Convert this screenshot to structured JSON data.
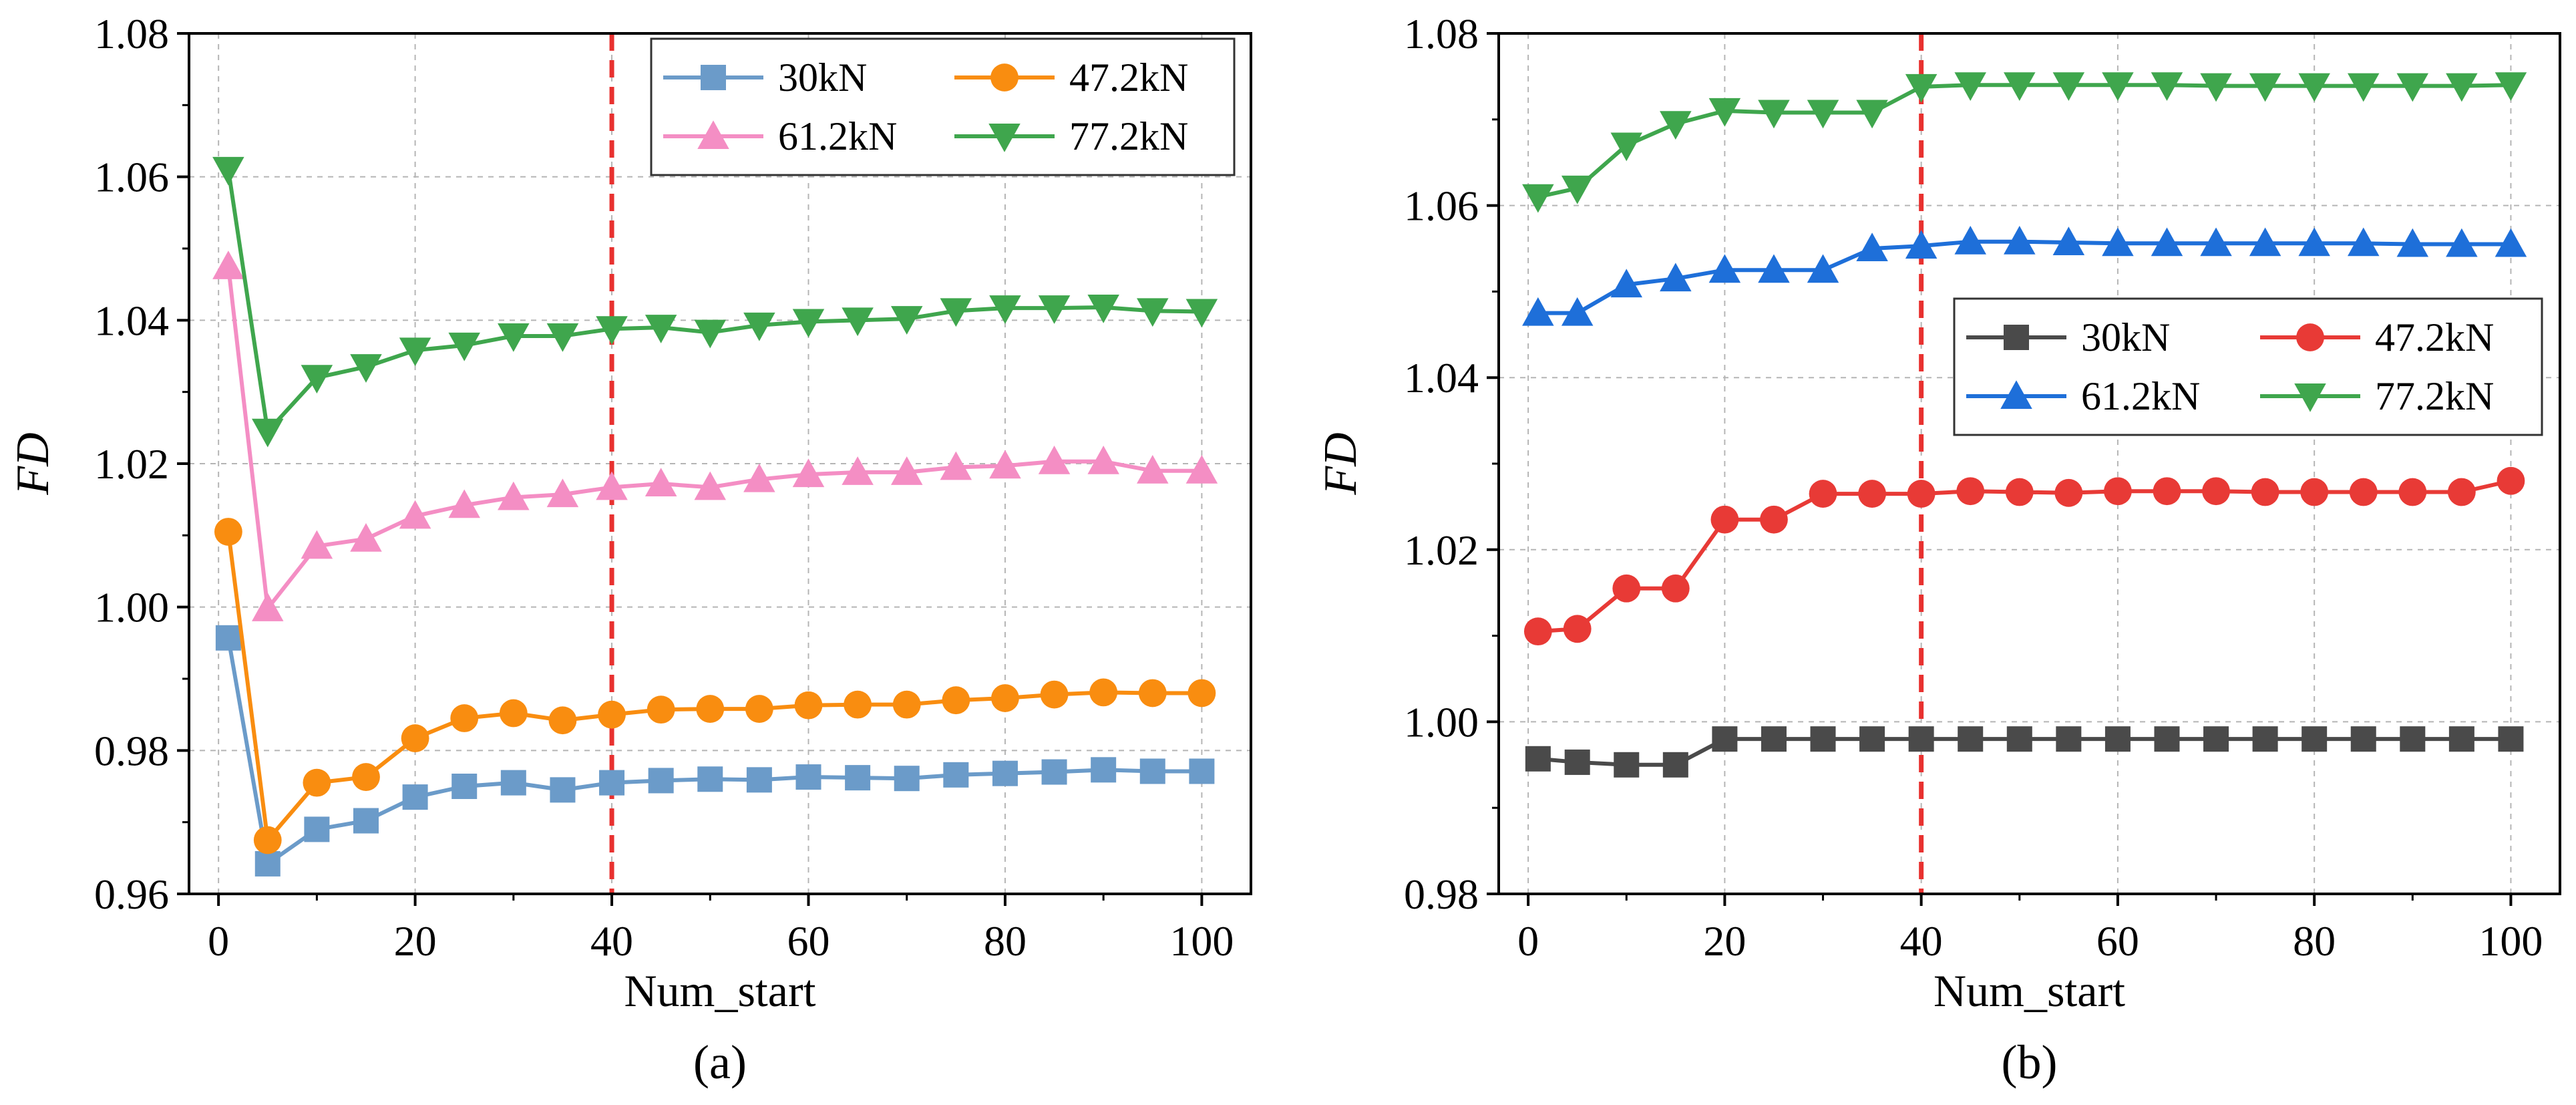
{
  "chart_data": [
    {
      "type": "line",
      "caption": "(a)",
      "xlabel": "Num_start",
      "ylabel": "FD",
      "xlim": [
        -3,
        105
      ],
      "ylim": [
        0.96,
        1.08
      ],
      "xticks": [
        0,
        20,
        40,
        60,
        80,
        100
      ],
      "xtick_labels": [
        "0",
        "20",
        "40",
        "60",
        "80",
        "100"
      ],
      "yticks": [
        0.96,
        0.98,
        1.0,
        1.02,
        1.04,
        1.06,
        1.08
      ],
      "ytick_labels": [
        "0.96",
        "0.98",
        "1.00",
        "1.02",
        "1.04",
        "1.06",
        "1.08"
      ],
      "grid": true,
      "vline": {
        "x": 40,
        "color": "#e8312f",
        "style": "dashed"
      },
      "legend": {
        "placement": "top-right",
        "columns": 2
      },
      "x": [
        1,
        5,
        10,
        15,
        20,
        25,
        30,
        35,
        40,
        45,
        50,
        55,
        60,
        65,
        70,
        75,
        80,
        85,
        90,
        95,
        100
      ],
      "series": [
        {
          "name": "30kN",
          "marker": "square",
          "color": "#6b9bc9",
          "values": [
            0.9957,
            0.9642,
            0.969,
            0.9702,
            0.9735,
            0.975,
            0.9755,
            0.9745,
            0.9755,
            0.9758,
            0.976,
            0.9759,
            0.9763,
            0.9762,
            0.9761,
            0.9766,
            0.9768,
            0.977,
            0.9773,
            0.9771,
            0.9771
          ]
        },
        {
          "name": "47.2kN",
          "marker": "circle",
          "color": "#f98d10",
          "values": [
            1.0105,
            0.9675,
            0.9755,
            0.9763,
            0.9817,
            0.9845,
            0.9852,
            0.9842,
            0.985,
            0.9857,
            0.9858,
            0.9858,
            0.9863,
            0.9864,
            0.9864,
            0.987,
            0.9873,
            0.9878,
            0.9881,
            0.988,
            0.988
          ]
        },
        {
          "name": "61.2kN",
          "marker": "triangle-up",
          "color": "#f48ec4",
          "values": [
            1.0475,
            0.9998,
            1.0085,
            1.0095,
            1.0127,
            1.0142,
            1.0153,
            1.0157,
            1.0167,
            1.0172,
            1.0167,
            1.0178,
            1.0185,
            1.0188,
            1.0188,
            1.0195,
            1.0197,
            1.0203,
            1.0203,
            1.019,
            1.019
          ]
        },
        {
          "name": "77.2kN",
          "marker": "triangle-down",
          "color": "#3fa64d",
          "values": [
            1.061,
            1.0245,
            1.032,
            1.0335,
            1.0358,
            1.0365,
            1.0378,
            1.0378,
            1.0388,
            1.039,
            1.0383,
            1.0393,
            1.0398,
            1.04,
            1.0402,
            1.0413,
            1.0417,
            1.0417,
            1.0418,
            1.0413,
            1.0412
          ]
        }
      ]
    },
    {
      "type": "line",
      "caption": "(b)",
      "xlabel": "Num_start",
      "ylabel": "FD",
      "xlim": [
        -3,
        105
      ],
      "ylim": [
        0.98,
        1.08
      ],
      "xticks": [
        0,
        20,
        40,
        60,
        80,
        100
      ],
      "xtick_labels": [
        "0",
        "20",
        "40",
        "60",
        "80",
        "100"
      ],
      "yticks": [
        0.98,
        1.0,
        1.02,
        1.04,
        1.06,
        1.08
      ],
      "ytick_labels": [
        "0.98",
        "1.00",
        "1.02",
        "1.04",
        "1.06",
        "1.08"
      ],
      "grid": true,
      "vline": {
        "x": 40,
        "color": "#e8312f",
        "style": "dashed"
      },
      "legend": {
        "placement": "center-right",
        "columns": 2
      },
      "x": [
        1,
        5,
        10,
        15,
        20,
        25,
        30,
        35,
        40,
        45,
        50,
        55,
        60,
        65,
        70,
        75,
        80,
        85,
        90,
        95,
        100
      ],
      "series": [
        {
          "name": "30kN",
          "marker": "square",
          "color": "#4a4a4a",
          "values": [
            0.9957,
            0.9953,
            0.995,
            0.995,
            0.998,
            0.998,
            0.998,
            0.998,
            0.998,
            0.998,
            0.998,
            0.998,
            0.998,
            0.998,
            0.998,
            0.998,
            0.998,
            0.998,
            0.998,
            0.998,
            0.998
          ]
        },
        {
          "name": "47.2kN",
          "marker": "circle",
          "color": "#e83a36",
          "values": [
            1.0105,
            1.0108,
            1.0155,
            1.0155,
            1.0235,
            1.0235,
            1.0265,
            1.0265,
            1.0265,
            1.0268,
            1.0267,
            1.0266,
            1.0268,
            1.0268,
            1.0268,
            1.0267,
            1.0267,
            1.0267,
            1.0267,
            1.0267,
            1.028
          ]
        },
        {
          "name": "61.2kN",
          "marker": "triangle-up",
          "color": "#1e6fd9",
          "values": [
            1.0475,
            1.0475,
            1.0508,
            1.0515,
            1.0525,
            1.0525,
            1.0525,
            1.055,
            1.0553,
            1.0558,
            1.0558,
            1.0557,
            1.0556,
            1.0556,
            1.0556,
            1.0556,
            1.0556,
            1.0556,
            1.0555,
            1.0555,
            1.0555
          ]
        },
        {
          "name": "77.2kN",
          "marker": "triangle-down",
          "color": "#3fa64d",
          "values": [
            1.061,
            1.062,
            1.067,
            1.0695,
            1.071,
            1.0708,
            1.0708,
            1.0708,
            1.0738,
            1.074,
            1.074,
            1.074,
            1.074,
            1.074,
            1.0739,
            1.0739,
            1.0739,
            1.0739,
            1.0739,
            1.0739,
            1.074
          ]
        }
      ]
    }
  ]
}
